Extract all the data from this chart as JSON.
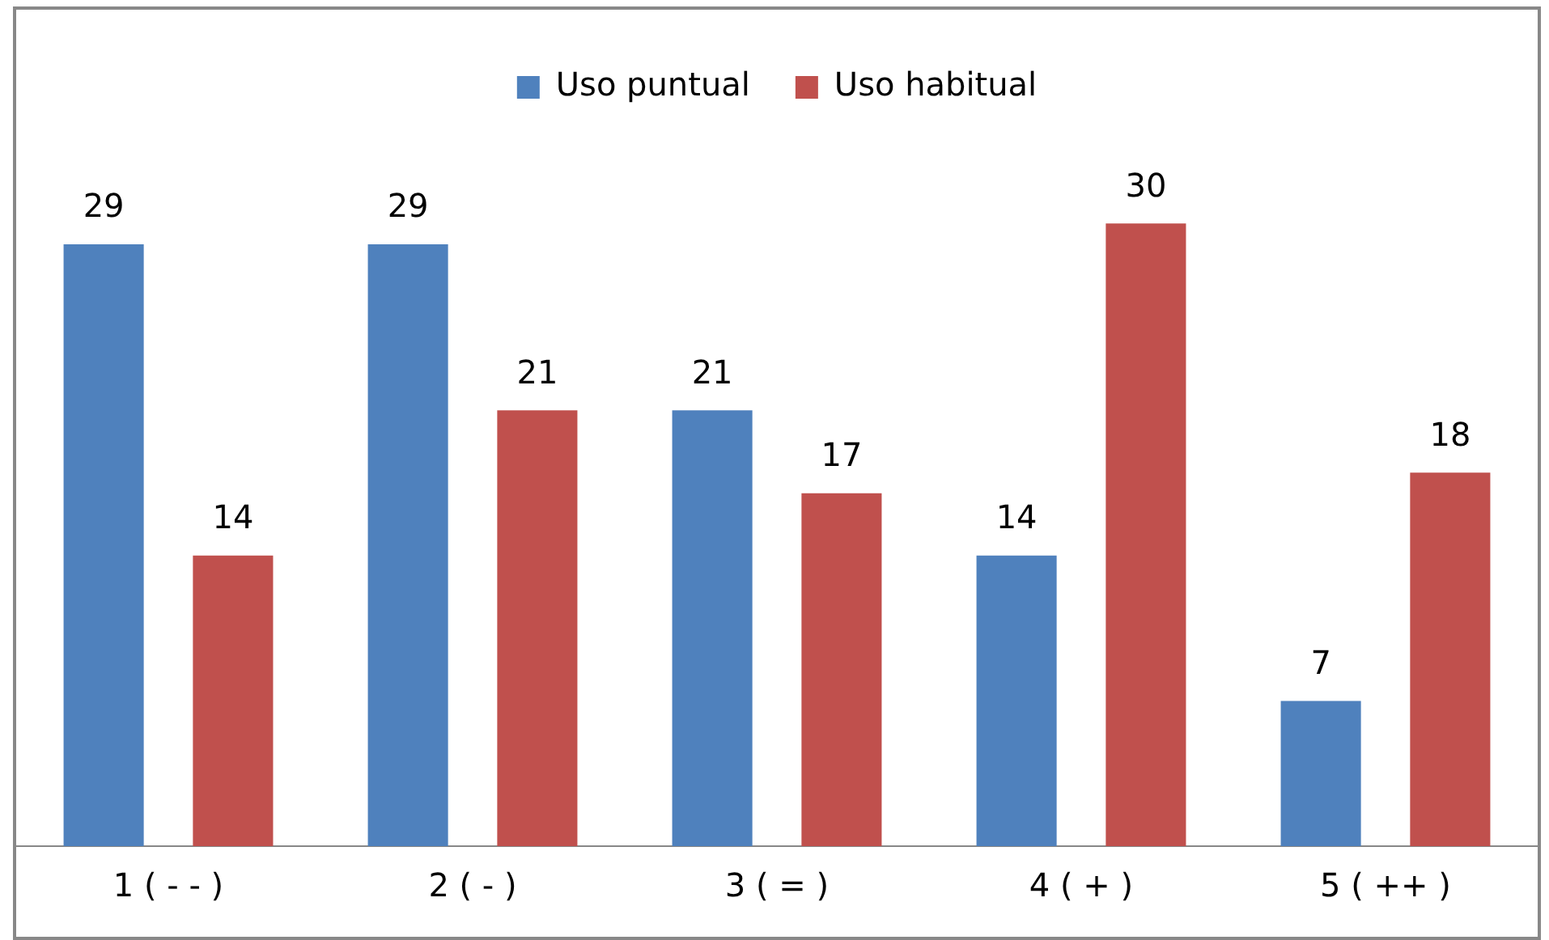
{
  "chart_data": {
    "type": "bar",
    "categories": [
      "1 ( - - )",
      "2 ( - )",
      "3 ( = )",
      "4 ( + )",
      "5 ( ++ )"
    ],
    "series": [
      {
        "name": "Uso puntual",
        "color": "#4f81bd",
        "values": [
          29,
          29,
          21,
          14,
          7
        ]
      },
      {
        "name": "Uso habitual",
        "color": "#c0504d",
        "values": [
          14,
          21,
          17,
          30,
          18
        ]
      }
    ],
    "data_labels": true,
    "legend": "top",
    "grid": false
  }
}
